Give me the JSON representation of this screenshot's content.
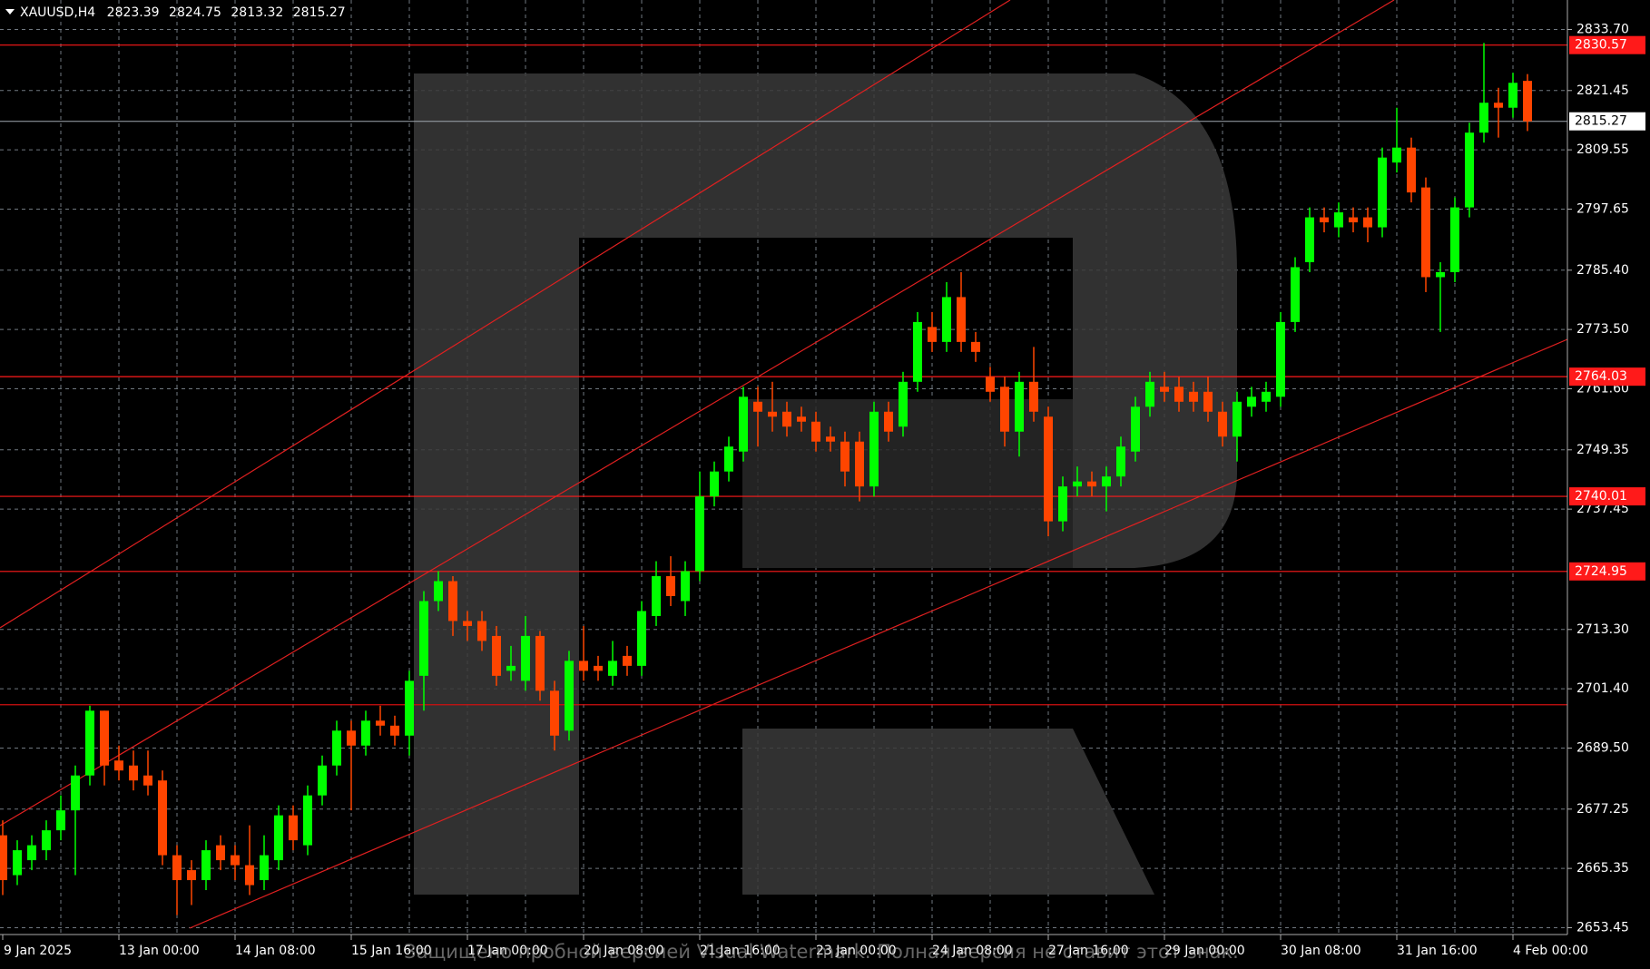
{
  "chart_data": {
    "type": "candlestick",
    "title": "XAUUSD,H4",
    "watermark": "Защищено пробной версией Visual Watermark. Полная версия не ставит этот знак.",
    "categories": [
      "9 Jan 2025",
      null,
      null,
      null,
      null,
      null,
      null,
      null,
      "13 Jan 00:00",
      null,
      null,
      null,
      null,
      null,
      null,
      null,
      "14 Jan 08:00",
      null,
      null,
      null,
      null,
      null,
      null,
      null,
      "15 Jan 16:00",
      null,
      null,
      null,
      null,
      null,
      null,
      null,
      "17 Jan 00:00",
      null,
      null,
      null,
      null,
      null,
      null,
      null,
      "20 Jan 08:00",
      null,
      null,
      null,
      null,
      null,
      null,
      null,
      "21 Jan 16:00",
      null,
      null,
      null,
      null,
      null,
      null,
      null,
      "23 Jan 00:00",
      null,
      null,
      null,
      null,
      null,
      null,
      null,
      "24 Jan 08:00",
      null,
      null,
      null,
      null,
      null,
      null,
      null,
      "27 Jan 16:00",
      null,
      null,
      null,
      null,
      null,
      null,
      null,
      "29 Jan 00:00",
      null,
      null,
      null,
      null,
      null,
      null,
      null,
      "30 Jan 08:00",
      null,
      null,
      null,
      null,
      null,
      null,
      null,
      "31 Jan 16:00",
      null,
      null,
      null,
      null,
      null,
      null,
      null,
      "4 Feb 00:00",
      null
    ],
    "open": [
      2672,
      2664,
      2667,
      2669,
      2673,
      2677,
      2684,
      2697,
      2687,
      2686,
      2684,
      2683,
      2668,
      2665,
      2663,
      2670,
      2668,
      2666,
      2663,
      2667,
      2676,
      2670,
      2680,
      2686,
      2693,
      2690,
      2695,
      2694,
      2692,
      2704,
      2719,
      2723,
      2715,
      2715,
      2712,
      2705,
      2703,
      2712,
      2701,
      2693,
      2707,
      2706,
      2704,
      2708,
      2706,
      2716,
      2724,
      2719,
      2725,
      2740,
      2745,
      2749,
      2759,
      2757,
      2757,
      2756,
      2755,
      2752,
      2751,
      2751,
      2742,
      2757,
      2754,
      2763,
      2774,
      2771,
      2780,
      2771,
      2764,
      2762,
      2753,
      2763,
      2756,
      2735,
      2742,
      2743,
      2742,
      2744,
      2749,
      2758,
      2762,
      2762,
      2761,
      2761,
      2757,
      2752,
      2758,
      2759,
      2760,
      2775,
      2787,
      2796,
      2794,
      2796,
      2796,
      2794,
      2807,
      2810,
      2802,
      2784,
      2785,
      2798,
      2813,
      2819,
      2818,
      2823.39
    ],
    "high": [
      2675,
      2671,
      2672,
      2675,
      2680,
      2686,
      2698,
      2697,
      2690,
      2689,
      2689,
      2685,
      2670,
      2667,
      2671,
      2672,
      2670,
      2674,
      2672,
      2678,
      2678,
      2682,
      2688,
      2695,
      2695,
      2697,
      2698,
      2696,
      2705,
      2721,
      2725,
      2724,
      2717,
      2717,
      2714,
      2710,
      2716,
      2713,
      2703,
      2709,
      2714,
      2708,
      2711,
      2710,
      2719,
      2727,
      2728,
      2727,
      2745,
      2747,
      2752,
      2762,
      2762,
      2763,
      2759,
      2758,
      2757,
      2754,
      2753,
      2753,
      2759,
      2759,
      2765,
      2777,
      2777,
      2783,
      2785,
      2773,
      2766,
      2764,
      2765,
      2770,
      2758,
      2744,
      2746,
      2745,
      2746,
      2752,
      2760,
      2765,
      2765,
      2764,
      2763,
      2764,
      2759,
      2761,
      2762,
      2763,
      2777,
      2788,
      2798,
      2798,
      2799,
      2798,
      2798,
      2810,
      2818,
      2812,
      2804,
      2787,
      2800,
      2815,
      2831,
      2822,
      2825,
      2824.75
    ],
    "low": [
      2660,
      2662,
      2665,
      2667,
      2671,
      2664,
      2682,
      2682,
      2683,
      2681,
      2680,
      2666,
      2656,
      2658,
      2661,
      2665,
      2663,
      2660,
      2661,
      2665,
      2669,
      2668,
      2678,
      2684,
      2677,
      2688,
      2692,
      2690,
      2688,
      2697,
      2717,
      2712,
      2711,
      2709,
      2702,
      2703,
      2701,
      2699,
      2689,
      2691,
      2703,
      2703,
      2702,
      2704,
      2704,
      2714,
      2718,
      2716,
      2723,
      2738,
      2743,
      2747,
      2750,
      2753,
      2752,
      2753,
      2749,
      2749,
      2742,
      2739,
      2740,
      2751,
      2752,
      2761,
      2769,
      2769,
      2769,
      2767,
      2759,
      2750,
      2748,
      2755,
      2732,
      2733,
      2740,
      2740,
      2737,
      2742,
      2747,
      2756,
      2759,
      2757,
      2757,
      2755,
      2750,
      2747,
      2756,
      2757,
      2758,
      2773,
      2785,
      2793,
      2792,
      2793,
      2791,
      2792,
      2805,
      2799,
      2781,
      2773,
      2783,
      2796,
      2811,
      2812,
      2816,
      2813.32
    ],
    "close": [
      2663,
      2669,
      2670,
      2673,
      2677,
      2684,
      2697,
      2686,
      2685,
      2683,
      2682,
      2668,
      2663,
      2663,
      2669,
      2667,
      2666,
      2662,
      2668,
      2676,
      2671,
      2680,
      2686,
      2693,
      2690,
      2695,
      2694,
      2692,
      2703,
      2719,
      2723,
      2715,
      2714,
      2711,
      2704,
      2706,
      2712,
      2701,
      2692,
      2707,
      2705,
      2705,
      2707,
      2706,
      2717,
      2724,
      2720,
      2725,
      2740,
      2745,
      2750,
      2760,
      2757,
      2756,
      2754,
      2755,
      2751,
      2751,
      2745,
      2742,
      2757,
      2753,
      2763,
      2775,
      2771,
      2780,
      2771,
      2769,
      2761,
      2753,
      2763,
      2757,
      2735,
      2742,
      2743,
      2742,
      2744,
      2750,
      2758,
      2763,
      2761,
      2759,
      2759,
      2757,
      2752,
      2759,
      2760,
      2761,
      2775,
      2786,
      2796,
      2795,
      2797,
      2795,
      2794,
      2808,
      2810,
      2801,
      2784,
      2785,
      2798,
      2813,
      2819,
      2818,
      2823,
      2815.27
    ],
    "up_color": "#00ff00",
    "down_color": "#ff4500",
    "ylim": [
      2653.45,
      2833.7
    ],
    "yticks": [
      {
        "value": 2653.45,
        "label": "2653.45"
      },
      {
        "value": 2665.35,
        "label": "2665.35"
      },
      {
        "value": 2677.25,
        "label": "2677.25"
      },
      {
        "value": 2689.5,
        "label": "2689.50"
      },
      {
        "value": 2701.4,
        "label": "2701.40"
      },
      {
        "value": 2713.3,
        "label": "2713.30"
      },
      {
        "value": 2737.45,
        "label": "2737.45"
      },
      {
        "value": 2749.35,
        "label": "2749.35"
      },
      {
        "value": 2761.6,
        "label": "2761.60"
      },
      {
        "value": 2773.5,
        "label": "2773.50"
      },
      {
        "value": 2785.4,
        "label": "2785.40"
      },
      {
        "value": 2797.65,
        "label": "2797.65"
      },
      {
        "value": 2809.55,
        "label": "2809.55"
      },
      {
        "value": 2821.45,
        "label": "2821.45"
      },
      {
        "value": 2833.7,
        "label": "2833.70"
      }
    ],
    "levels": [
      2830.57,
      2764.03,
      2740.01,
      2724.95
    ],
    "extra_levels": [
      2698.2
    ],
    "grid": true
  }
}
